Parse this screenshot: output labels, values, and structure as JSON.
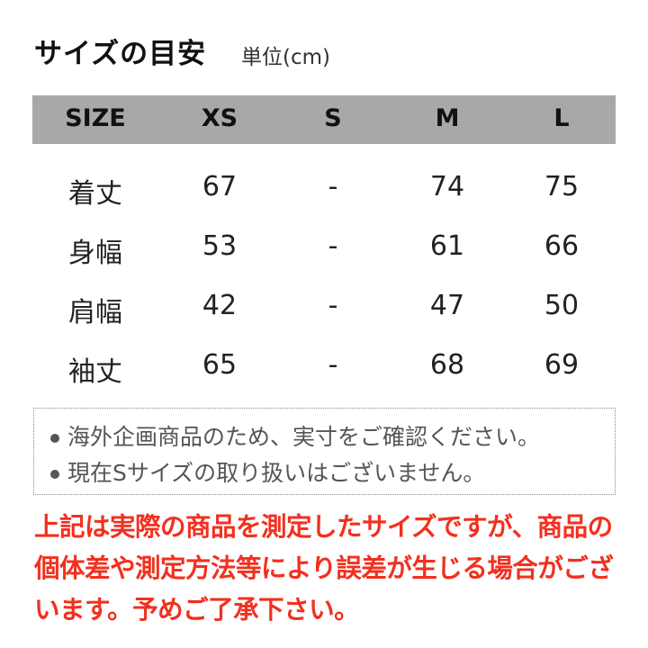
{
  "title": "サイズの目安",
  "unit": "単位(cm)",
  "colors": {
    "header_bg": "#a8a8a8",
    "warning": "#f2301f",
    "note_text": "#555555"
  },
  "table": {
    "headers": [
      "SIZE",
      "XS",
      "S",
      "M",
      "L"
    ],
    "rows": [
      [
        "着丈",
        "67",
        "-",
        "74",
        "75"
      ],
      [
        "身幅",
        "53",
        "-",
        "61",
        "66"
      ],
      [
        "肩幅",
        "42",
        "-",
        "47",
        "50"
      ],
      [
        "袖丈",
        "65",
        "-",
        "68",
        "69"
      ]
    ]
  },
  "notes": [
    "海外企画商品のため、実寸をご確認ください。",
    "現在Sサイズの取り扱いはございません。"
  ],
  "warning": "上記は実際の商品を測定したサイズですが、商品の個体差や測定方法等により誤差が生じる場合がございます。予めご了承下さい。"
}
